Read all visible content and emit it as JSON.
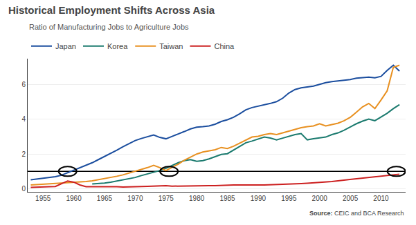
{
  "chart_data": {
    "type": "line",
    "title": "Historical Employment Shifts Across Asia",
    "subtitle": "Ratio of Manufacturing Jobs to Agriculture Jobs",
    "source_label": "Source:",
    "source": "CEIC and BCA Research",
    "x": [
      1953,
      1954,
      1955,
      1956,
      1957,
      1958,
      1959,
      1960,
      1961,
      1962,
      1963,
      1964,
      1965,
      1966,
      1967,
      1968,
      1969,
      1970,
      1971,
      1972,
      1973,
      1974,
      1975,
      1976,
      1977,
      1978,
      1979,
      1980,
      1981,
      1982,
      1983,
      1984,
      1985,
      1986,
      1987,
      1988,
      1989,
      1990,
      1991,
      1992,
      1993,
      1994,
      1995,
      1996,
      1997,
      1998,
      1999,
      2000,
      2001,
      2002,
      2003,
      2004,
      2005,
      2006,
      2007,
      2008,
      2009,
      2010,
      2011,
      2012,
      2013
    ],
    "series": [
      {
        "name": "Japan",
        "color": "#1a4d9e",
        "values": [
          0.52,
          0.56,
          0.6,
          0.65,
          0.7,
          0.78,
          0.92,
          1.08,
          1.22,
          1.35,
          1.5,
          1.68,
          1.85,
          2.05,
          2.22,
          2.42,
          2.6,
          2.78,
          2.9,
          3.0,
          3.1,
          2.96,
          2.88,
          3.02,
          3.15,
          3.3,
          3.45,
          3.55,
          3.58,
          3.62,
          3.72,
          3.88,
          3.98,
          4.12,
          4.32,
          4.55,
          4.68,
          4.75,
          4.82,
          4.92,
          5.02,
          5.22,
          5.52,
          5.72,
          5.82,
          5.86,
          5.92,
          6.02,
          6.12,
          6.18,
          6.22,
          6.28,
          6.3,
          6.38,
          6.42,
          6.44,
          6.4,
          6.48,
          6.82,
          7.12,
          6.78
        ]
      },
      {
        "name": "Korea",
        "color": "#1a7a6e",
        "values": [
          null,
          null,
          null,
          null,
          null,
          null,
          null,
          null,
          null,
          null,
          0.28,
          0.3,
          0.33,
          0.38,
          0.44,
          0.5,
          0.58,
          0.65,
          0.76,
          0.85,
          0.96,
          1.05,
          1.18,
          1.35,
          1.5,
          1.62,
          1.68,
          1.58,
          1.62,
          1.72,
          1.85,
          1.98,
          2.02,
          2.22,
          2.45,
          2.65,
          2.75,
          2.88,
          2.98,
          2.92,
          2.82,
          2.92,
          3.02,
          3.12,
          3.18,
          2.82,
          2.88,
          2.92,
          2.98,
          3.12,
          3.22,
          3.38,
          3.58,
          3.75,
          3.9,
          4.02,
          3.92,
          4.15,
          4.35,
          4.62,
          4.85
        ]
      },
      {
        "name": "Taiwan",
        "color": "#e89020",
        "values": [
          0.22,
          0.24,
          0.26,
          0.28,
          0.3,
          0.32,
          0.34,
          0.36,
          0.38,
          0.42,
          0.46,
          0.52,
          0.58,
          0.65,
          0.72,
          0.8,
          0.9,
          1.0,
          1.1,
          1.22,
          1.35,
          1.22,
          1.05,
          1.22,
          1.42,
          1.65,
          1.82,
          2.0,
          2.12,
          2.18,
          2.25,
          2.38,
          2.32,
          2.45,
          2.62,
          2.82,
          2.98,
          3.02,
          3.12,
          3.18,
          3.12,
          3.22,
          3.32,
          3.42,
          3.52,
          3.58,
          3.62,
          3.75,
          3.62,
          3.7,
          3.78,
          3.92,
          4.12,
          4.42,
          4.72,
          4.92,
          4.62,
          5.12,
          5.65,
          7.0,
          7.12
        ]
      },
      {
        "name": "China",
        "color": "#cc2020",
        "values": [
          0.08,
          0.1,
          0.1,
          0.12,
          0.13,
          0.3,
          0.45,
          0.38,
          0.22,
          0.12,
          0.12,
          0.13,
          0.14,
          0.13,
          0.12,
          0.1,
          0.1,
          0.12,
          0.13,
          0.14,
          0.15,
          0.18,
          0.18,
          0.15,
          0.16,
          0.17,
          0.18,
          0.18,
          0.18,
          0.18,
          0.18,
          0.2,
          0.22,
          0.22,
          0.22,
          0.23,
          0.22,
          0.22,
          0.22,
          0.23,
          0.24,
          0.25,
          0.26,
          0.28,
          0.3,
          0.32,
          0.34,
          0.36,
          0.38,
          0.42,
          0.46,
          0.5,
          0.54,
          0.58,
          0.62,
          0.66,
          0.68,
          0.72,
          0.76,
          0.8,
          0.84
        ]
      }
    ],
    "reference_line": 1,
    "circles": [
      {
        "x": 1959,
        "y": 1
      },
      {
        "x": 1975.5,
        "y": 1
      },
      {
        "x": 2012.5,
        "y": 1
      }
    ],
    "xlim": [
      1952.5,
      2014
    ],
    "xticks": [
      1955,
      1960,
      1965,
      1970,
      1975,
      1980,
      1985,
      1990,
      1995,
      2000,
      2005,
      2010
    ],
    "ylim": [
      -0.18,
      7.5
    ],
    "yticks": [
      0,
      2,
      4,
      6
    ],
    "grid": "y",
    "legend": "top"
  }
}
